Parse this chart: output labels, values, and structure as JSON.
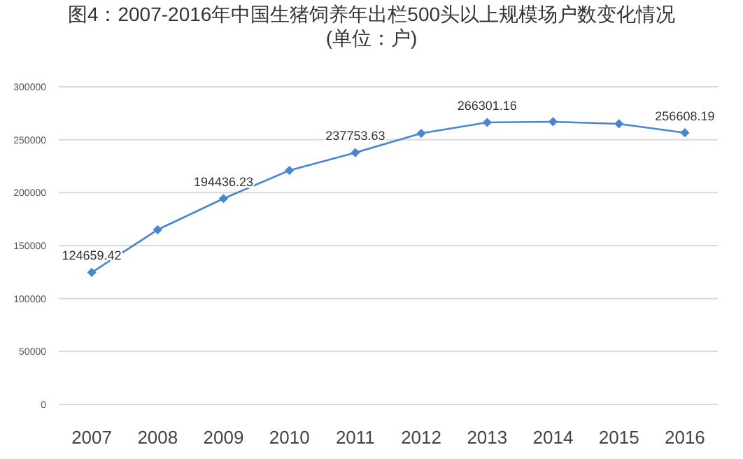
{
  "chart_data": {
    "type": "line",
    "title": "图4：2007-2016年中国生猪饲养年出栏500头以上规模场户数变化情况",
    "subtitle": "(单位：户)",
    "categories": [
      "2007",
      "2008",
      "2009",
      "2010",
      "2011",
      "2012",
      "2013",
      "2014",
      "2015",
      "2016"
    ],
    "series": [
      {
        "color": "#4a86d0",
        "values": [
          124659.42,
          165000,
          194436.23,
          221000,
          237753.63,
          256000,
          266301.16,
          267000,
          265000,
          256608.19
        ],
        "value_labels": [
          "124659.42",
          null,
          "194436.23",
          null,
          "237753.63",
          null,
          "266301.16",
          null,
          null,
          "256608.19"
        ]
      }
    ],
    "ylim": [
      0,
      300000
    ],
    "yticks": [
      0,
      50000,
      100000,
      150000,
      200000,
      250000,
      300000
    ],
    "grid": "y",
    "marker": "diamond",
    "line_style": "solid"
  }
}
